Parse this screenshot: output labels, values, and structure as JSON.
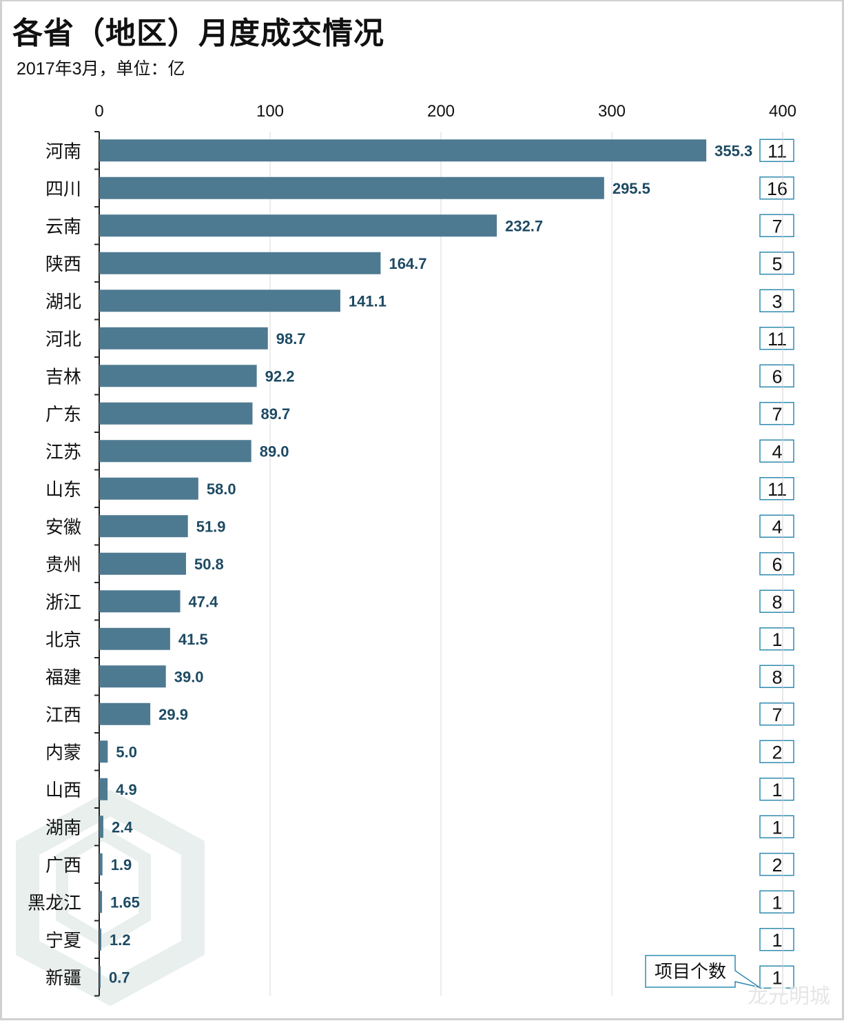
{
  "title": "各省（地区）月度成交情况",
  "subtitle": "2017年3月，单位：亿",
  "watermark": "龙元明城",
  "chart_data": {
    "type": "bar",
    "orientation": "horizontal",
    "title": "各省（地区）月度成交情况",
    "subtitle": "2017年3月，单位：亿",
    "xlabel": "",
    "ylabel": "",
    "xlim": [
      0,
      400
    ],
    "x_ticks": [
      "0",
      "100",
      "200",
      "300",
      "400"
    ],
    "x_tick_values": [
      0,
      100,
      200,
      300,
      400
    ],
    "axis_position": "top",
    "grid": true,
    "bar_color": "#4e7a91",
    "label_color": "#1d4a63",
    "categories": [
      "河南",
      "四川",
      "云南",
      "陕西",
      "湖北",
      "河北",
      "吉林",
      "广东",
      "江苏",
      "山东",
      "安徽",
      "贵州",
      "浙江",
      "北京",
      "福建",
      "江西",
      "内蒙",
      "山西",
      "湖南",
      "广西",
      "黑龙江",
      "宁夏",
      "新疆"
    ],
    "values": [
      355.3,
      295.5,
      232.7,
      164.7,
      141.1,
      98.7,
      92.2,
      89.7,
      89.0,
      58.0,
      51.9,
      50.8,
      47.4,
      41.5,
      39.0,
      29.9,
      5.0,
      4.9,
      2.4,
      1.9,
      1.65,
      1.2,
      0.7
    ],
    "value_labels": [
      "355.3",
      "295.5",
      "232.7",
      "164.7",
      "141.1",
      "98.7",
      "92.2",
      "89.7",
      "89.0",
      "58.0",
      "51.9",
      "50.8",
      "47.4",
      "41.5",
      "39.0",
      "29.9",
      "5.0",
      "4.9",
      "2.4",
      "1.9",
      "1.65",
      "1.2",
      "0.7"
    ],
    "secondary_series": {
      "name": "项目个数",
      "values": [
        11,
        16,
        7,
        5,
        3,
        11,
        6,
        7,
        4,
        11,
        4,
        6,
        8,
        1,
        8,
        7,
        2,
        1,
        1,
        2,
        1,
        1,
        1
      ],
      "box_color": "#2e8bb0"
    },
    "annotations": [
      {
        "text": "项目个数",
        "type": "callout",
        "target": "secondary_series",
        "placement": "bottom-right"
      }
    ]
  }
}
